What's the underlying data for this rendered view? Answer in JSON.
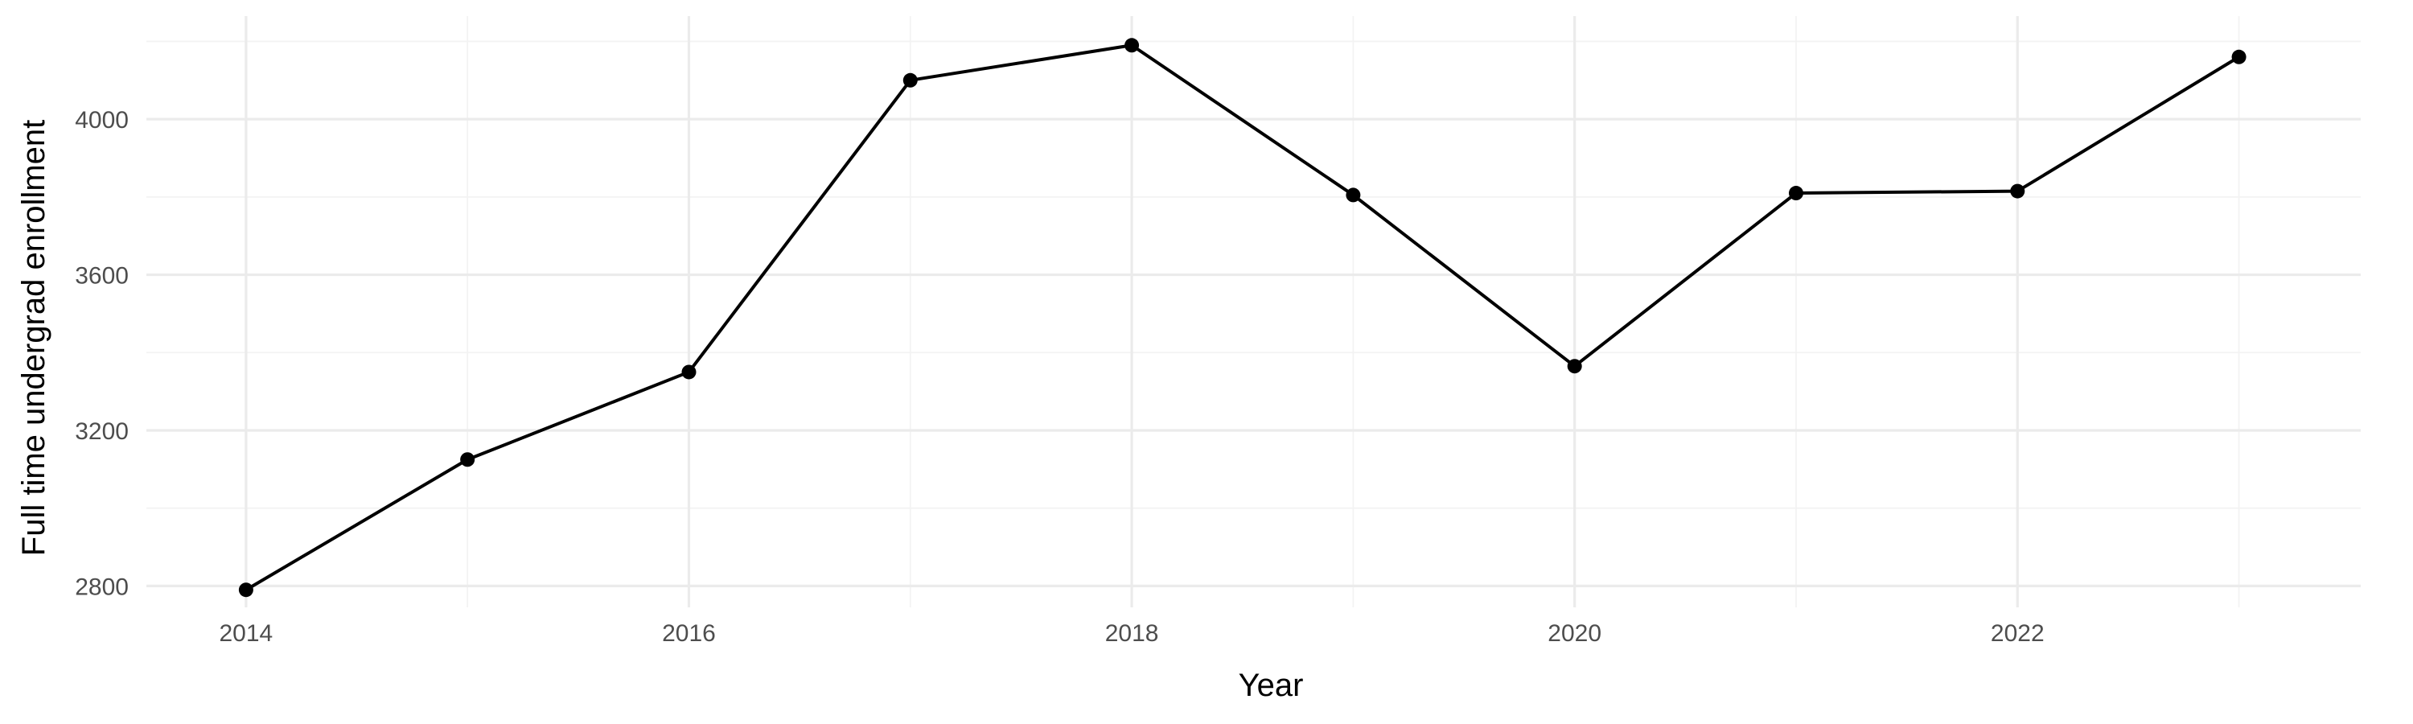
{
  "chart_data": {
    "type": "line",
    "title": "",
    "xlabel": "Year",
    "ylabel": "Full time undergrad enrollment",
    "x": [
      2014,
      2015,
      2016,
      2017,
      2018,
      2019,
      2020,
      2021,
      2022,
      2023
    ],
    "series": [
      {
        "values": [
          2790,
          3125,
          3350,
          4100,
          4190,
          3805,
          3365,
          3810,
          3815,
          4160
        ]
      }
    ],
    "xlim": [
      2013.55,
      2023.55
    ],
    "ylim": [
      2745,
      4265
    ],
    "x_ticks": [
      2014,
      2016,
      2018,
      2020,
      2022
    ],
    "x_tick_labels": [
      "2014",
      "2016",
      "2018",
      "2020",
      "2022"
    ],
    "y_ticks": [
      2800,
      3200,
      3600,
      4000
    ],
    "y_tick_labels": [
      "2800",
      "3200",
      "3600",
      "4000"
    ],
    "grid": true,
    "legend": "none",
    "colors": {
      "line": "#000000",
      "point": "#000000",
      "grid_major": "#ebebeb",
      "grid_minor": "#f3f3f3"
    }
  }
}
